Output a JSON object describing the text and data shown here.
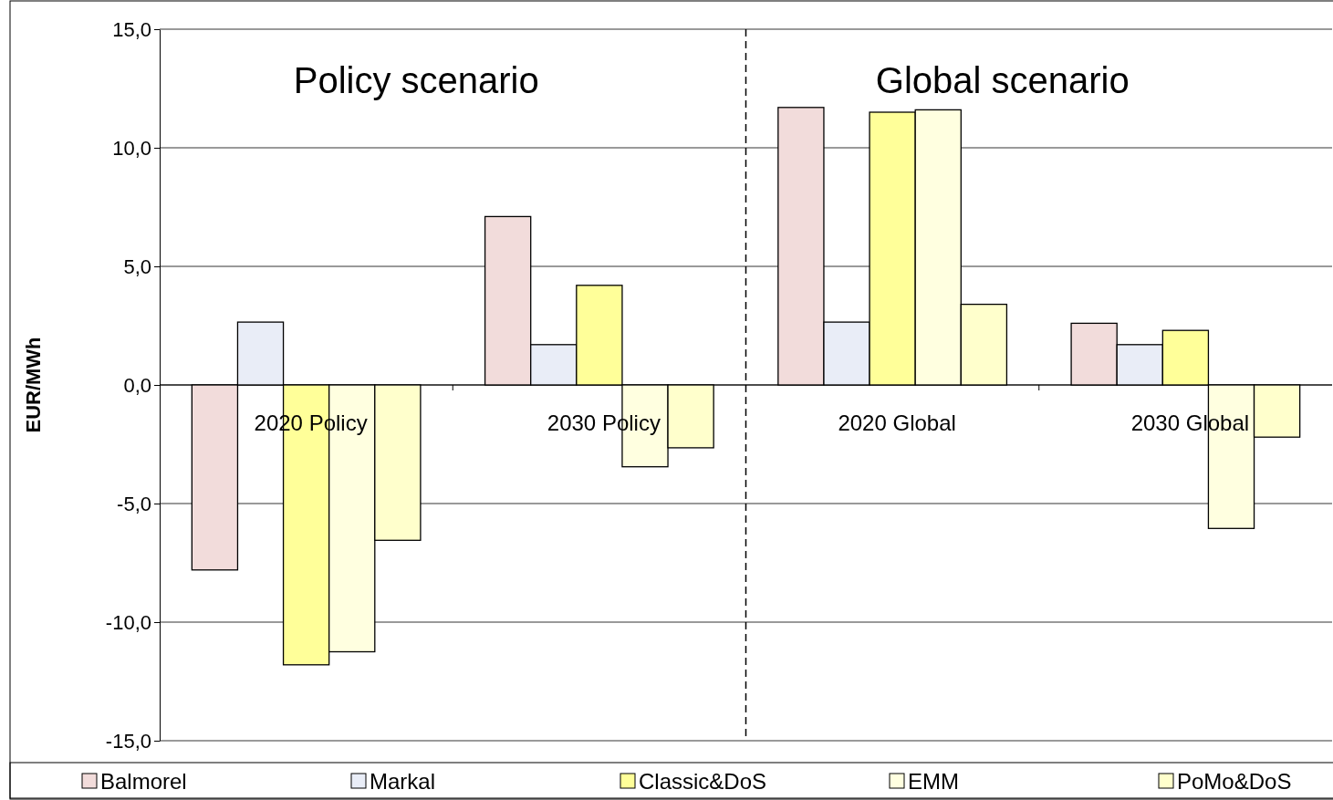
{
  "chart_data": {
    "type": "bar",
    "categories": [
      "2020 Policy",
      "2030 Policy",
      "2020 Global",
      "2030 Global"
    ],
    "series": [
      {
        "name": "Balmorel",
        "color": "#f2dcdb",
        "values": [
          -7.8,
          7.1,
          11.7,
          2.6
        ]
      },
      {
        "name": "Markal",
        "color": "#e9edf7",
        "values": [
          2.65,
          1.7,
          2.65,
          1.7
        ]
      },
      {
        "name": "Classic&DoS",
        "color": "#ffff99",
        "values": [
          -11.8,
          4.2,
          11.5,
          2.3
        ]
      },
      {
        "name": "EMM",
        "color": "#ffffe0",
        "values": [
          -11.25,
          -3.45,
          11.6,
          -6.05
        ]
      },
      {
        "name": "PoMo&DoS",
        "color": "#ffffcc",
        "values": [
          -6.55,
          -2.65,
          3.4,
          -2.2
        ]
      }
    ],
    "ylabel": "EUR/MWh",
    "ylim": [
      -15,
      15
    ],
    "yticks": [
      {
        "value": -15,
        "label": "-15,0"
      },
      {
        "value": -10,
        "label": "-10,0"
      },
      {
        "value": -5,
        "label": "-5,0"
      },
      {
        "value": 0,
        "label": "0,0"
      },
      {
        "value": 5,
        "label": "5,0"
      },
      {
        "value": 10,
        "label": "10,0"
      },
      {
        "value": 15,
        "label": "15,0"
      }
    ],
    "grid": "y",
    "legend": "bottom",
    "annotations": [
      "Policy scenario",
      "Global scenario"
    ]
  }
}
